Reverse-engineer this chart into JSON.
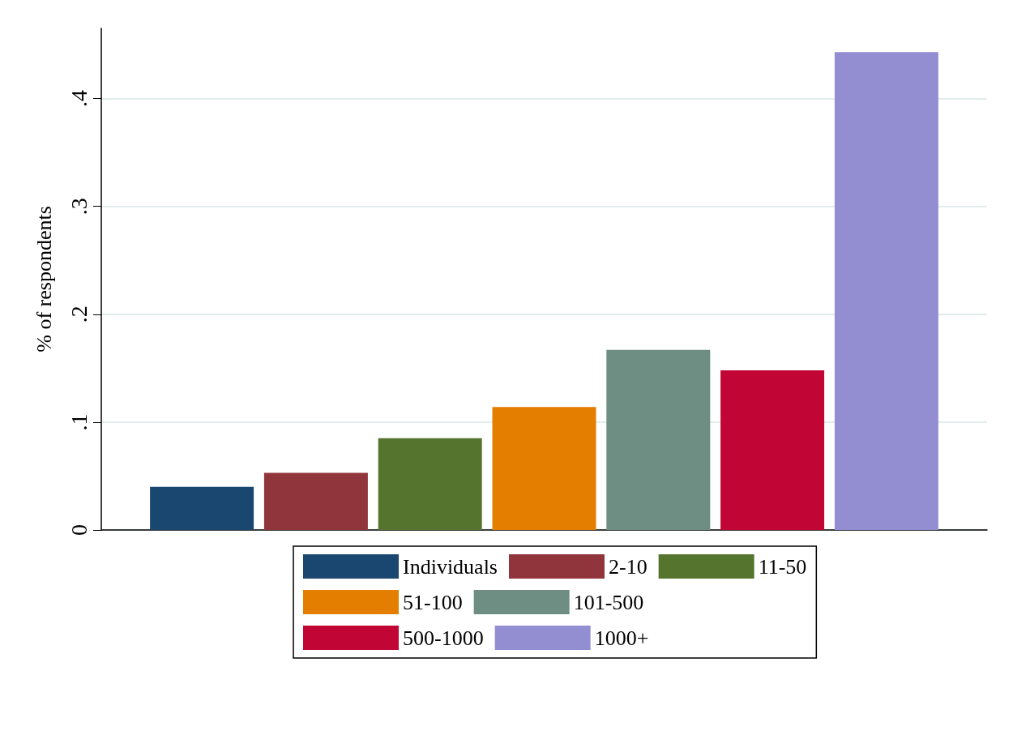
{
  "chart_data": {
    "type": "bar",
    "ylabel": "% of respondents",
    "categories": [
      null
    ],
    "series": [
      {
        "name": "Individuals",
        "color": "#1a476f",
        "values": [
          0.04
        ]
      },
      {
        "name": "2-10",
        "color": "#90353b",
        "values": [
          0.053
        ]
      },
      {
        "name": "11-50",
        "color": "#55752f",
        "values": [
          0.085
        ]
      },
      {
        "name": "51-100",
        "color": "#e37e00",
        "values": [
          0.114
        ]
      },
      {
        "name": "101-500",
        "color": "#6e8e84",
        "values": [
          0.167
        ]
      },
      {
        "name": "500-1000",
        "color": "#c10534",
        "values": [
          0.148
        ]
      },
      {
        "name": "1000+",
        "color": "#938dd2",
        "values": [
          0.443
        ]
      }
    ],
    "ylim": [
      0,
      0.465
    ],
    "yticks": [
      0,
      {
        "value": 0.1,
        "label": ".1"
      },
      {
        "value": 0.2,
        "label": ".2"
      },
      {
        "value": 0.3,
        "label": ".3"
      },
      {
        "value": 0.4,
        "label": ".4"
      }
    ],
    "grid": "y",
    "legend": "bottom"
  }
}
